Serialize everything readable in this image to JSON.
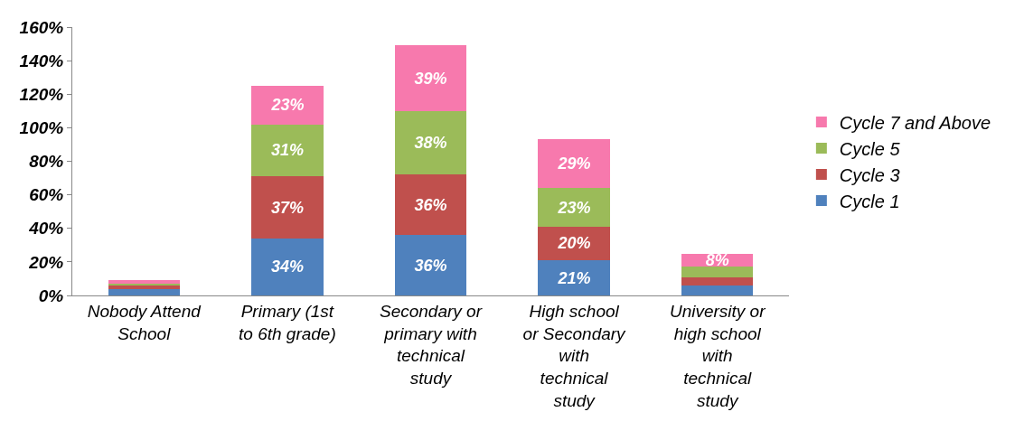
{
  "chart_data": {
    "type": "bar",
    "stacked": true,
    "categories": [
      "Nobody Attend School",
      "Primary (1st to 6th grade)",
      "Secondary or primary with technical study",
      "High school or Secondary with technical study",
      "University or high school with technical study"
    ],
    "series": [
      {
        "name": "Cycle 1",
        "color": "#4f81bd",
        "values": [
          4,
          34,
          36,
          21,
          6
        ],
        "value_labels": [
          null,
          "34%",
          "36%",
          "21%",
          null
        ]
      },
      {
        "name": "Cycle 3",
        "color": "#c0504d",
        "values": [
          2,
          37,
          36,
          20,
          5
        ],
        "value_labels": [
          null,
          "37%",
          "36%",
          "20%",
          null
        ]
      },
      {
        "name": "Cycle 5",
        "color": "#9bbb59",
        "values": [
          1,
          31,
          38,
          23,
          6
        ],
        "value_labels": [
          null,
          "31%",
          "38%",
          "23%",
          null
        ]
      },
      {
        "name": "Cycle 7 and Above",
        "color": "#f779ad",
        "values": [
          2,
          23,
          39,
          29,
          8
        ],
        "value_labels": [
          null,
          "23%",
          "39%",
          "29%",
          "8%"
        ]
      }
    ],
    "ylim": [
      0,
      160
    ],
    "yticks": [
      {
        "value": 0,
        "label": "0%"
      },
      {
        "value": 20,
        "label": "20%"
      },
      {
        "value": 40,
        "label": "40%"
      },
      {
        "value": 60,
        "label": "60%"
      },
      {
        "value": 80,
        "label": "80%"
      },
      {
        "value": 100,
        "label": "100%"
      },
      {
        "value": 120,
        "label": "120%"
      },
      {
        "value": 140,
        "label": "140%"
      },
      {
        "value": 160,
        "label": "160%"
      }
    ],
    "legend": "right"
  }
}
